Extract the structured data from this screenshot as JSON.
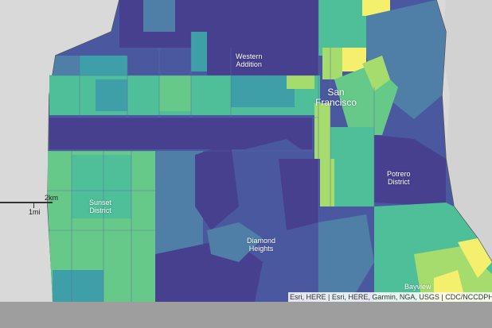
{
  "map": {
    "labels": {
      "western_addition": "Western\nAddition",
      "san_francisco": "San\nFrancisco",
      "potrero_district": "Potrero\nDistrict",
      "sunset_district": "Sunset\nDistrict",
      "diamond_heights": "Diamond\nHeights",
      "bayview": "Bayview"
    },
    "scale": {
      "top_label": "2km",
      "bottom_label": "1mi"
    },
    "attribution": "Esri, HERE | Esri, HERE, Garmin, NGA, USGS | CDC/NCCDPHP/DPH",
    "palette": {
      "dark_purple": "#46408f",
      "blue_purple": "#4a58a0",
      "steel_blue": "#4f7fa6",
      "teal": "#3f9fa8",
      "teal_green": "#4fbf9a",
      "green": "#66c98a",
      "light_green": "#a6dc6e",
      "yellow": "#f5ef6e",
      "land_gray": "#d9d9d9",
      "water": "#ffffff"
    }
  }
}
